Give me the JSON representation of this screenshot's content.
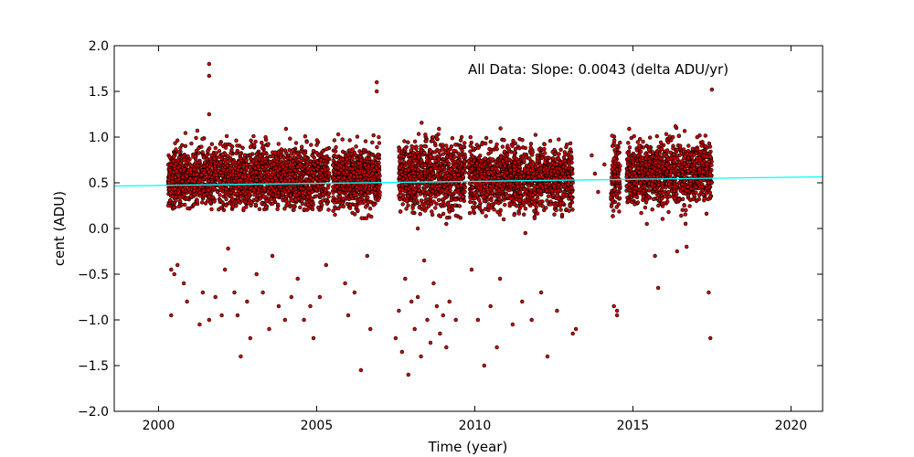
{
  "chart_data": {
    "type": "scatter",
    "xlabel": "Time (year)",
    "ylabel": "cent (ADU)",
    "xlim": [
      1998.6,
      2021.0
    ],
    "ylim": [
      -2.0,
      2.0
    ],
    "xticks": [
      2000,
      2005,
      2010,
      2015,
      2020
    ],
    "xtick_labels": [
      "2000",
      "2005",
      "2010",
      "2015",
      "2020"
    ],
    "yticks": [
      -2.0,
      -1.5,
      -1.0,
      -0.5,
      0.0,
      0.5,
      1.0,
      1.5,
      2.0
    ],
    "ytick_labels": [
      "−2.0",
      "−1.5",
      "−1.0",
      "−0.5",
      "0.0",
      "0.5",
      "1.0",
      "1.5",
      "2.0"
    ],
    "grid": false,
    "annotation": "All Data: Slope:  0.0043 (delta ADU/yr)",
    "fit_line": {
      "color": "#00ffff",
      "slope": 0.0043,
      "x": [
        1998.6,
        2021.0
      ],
      "y": [
        0.465,
        0.565
      ]
    },
    "marker_color": "#cc0000",
    "marker_edge": "#000000",
    "dense_clusters": [
      {
        "x_range": [
          2000.3,
          2005.4
        ],
        "y_center": 0.55,
        "y_spread": 0.3,
        "y_min": 0.2,
        "y_max": 1.1
      },
      {
        "x_range": [
          2005.5,
          2007.0
        ],
        "y_center": 0.55,
        "y_spread": 0.3,
        "y_min": 0.1,
        "y_max": 1.05
      },
      {
        "x_range": [
          2007.6,
          2009.7
        ],
        "y_center": 0.58,
        "y_spread": 0.33,
        "y_min": 0.1,
        "y_max": 1.2
      },
      {
        "x_range": [
          2009.8,
          2013.1
        ],
        "y_center": 0.55,
        "y_spread": 0.3,
        "y_min": 0.1,
        "y_max": 1.15
      },
      {
        "x_range": [
          2014.3,
          2014.6
        ],
        "y_center": 0.55,
        "y_spread": 0.35,
        "y_min": 0.05,
        "y_max": 1.05
      },
      {
        "x_range": [
          2014.8,
          2017.5
        ],
        "y_center": 0.6,
        "y_spread": 0.3,
        "y_min": 0.05,
        "y_max": 1.2
      }
    ],
    "outliers": [
      [
        2000.4,
        -0.95
      ],
      [
        2000.4,
        -0.45
      ],
      [
        2000.5,
        -0.5
      ],
      [
        2000.6,
        -0.4
      ],
      [
        2000.8,
        -0.6
      ],
      [
        2000.9,
        -0.8
      ],
      [
        2001.3,
        -1.05
      ],
      [
        2001.4,
        -0.7
      ],
      [
        2001.6,
        -1.0
      ],
      [
        2001.8,
        -0.75
      ],
      [
        2002.0,
        -0.95
      ],
      [
        2002.1,
        -0.45
      ],
      [
        2002.2,
        -0.22
      ],
      [
        2002.4,
        -0.7
      ],
      [
        2002.5,
        -0.95
      ],
      [
        2002.6,
        -1.4
      ],
      [
        2002.8,
        -0.8
      ],
      [
        2002.9,
        -1.2
      ],
      [
        2003.1,
        -0.5
      ],
      [
        2003.3,
        -0.7
      ],
      [
        2003.5,
        -1.1
      ],
      [
        2003.6,
        -0.3
      ],
      [
        2003.8,
        -0.85
      ],
      [
        2004.0,
        -1.0
      ],
      [
        2004.2,
        -0.75
      ],
      [
        2004.4,
        -0.55
      ],
      [
        2004.6,
        -1.0
      ],
      [
        2004.8,
        -0.85
      ],
      [
        2004.9,
        -1.2
      ],
      [
        2005.1,
        -0.75
      ],
      [
        2005.3,
        -0.4
      ],
      [
        2005.9,
        -0.6
      ],
      [
        2006.0,
        -0.95
      ],
      [
        2006.2,
        -0.7
      ],
      [
        2006.4,
        -1.55
      ],
      [
        2006.6,
        -0.3
      ],
      [
        2006.7,
        -1.1
      ],
      [
        2007.5,
        -1.2
      ],
      [
        2007.6,
        -0.9
      ],
      [
        2007.7,
        -1.35
      ],
      [
        2007.8,
        -0.55
      ],
      [
        2007.9,
        -1.6
      ],
      [
        2008.0,
        -0.8
      ],
      [
        2008.1,
        -1.1
      ],
      [
        2008.2,
        -0.75
      ],
      [
        2008.3,
        -1.4
      ],
      [
        2008.4,
        -0.35
      ],
      [
        2008.5,
        -1.0
      ],
      [
        2008.6,
        -1.25
      ],
      [
        2008.7,
        -0.6
      ],
      [
        2008.8,
        -0.85
      ],
      [
        2008.9,
        -1.15
      ],
      [
        2009.0,
        -0.95
      ],
      [
        2009.1,
        -1.3
      ],
      [
        2009.2,
        -0.8
      ],
      [
        2009.4,
        -1.0
      ],
      [
        2009.9,
        -0.45
      ],
      [
        2010.1,
        -1.0
      ],
      [
        2010.3,
        -1.5
      ],
      [
        2010.5,
        -0.85
      ],
      [
        2010.7,
        -1.3
      ],
      [
        2010.8,
        -0.55
      ],
      [
        2011.2,
        -1.05
      ],
      [
        2011.5,
        -0.8
      ],
      [
        2011.8,
        -1.0
      ],
      [
        2012.1,
        -0.7
      ],
      [
        2012.3,
        -1.4
      ],
      [
        2012.6,
        -0.9
      ],
      [
        2013.1,
        -1.15
      ],
      [
        2013.2,
        -1.1
      ],
      [
        2014.4,
        -0.85
      ],
      [
        2014.5,
        -0.9
      ],
      [
        2014.5,
        -0.95
      ],
      [
        2015.7,
        -0.3
      ],
      [
        2015.8,
        -0.65
      ],
      [
        2016.4,
        -0.25
      ],
      [
        2016.7,
        -0.2
      ],
      [
        2017.4,
        -0.7
      ],
      [
        2017.45,
        -1.2
      ],
      [
        2001.6,
        1.8
      ],
      [
        2001.6,
        1.67
      ],
      [
        2006.9,
        1.6
      ],
      [
        2006.9,
        1.5
      ],
      [
        2017.5,
        1.52
      ],
      [
        2001.6,
        1.25
      ],
      [
        2008.2,
        0.0
      ],
      [
        2009.1,
        0.05
      ],
      [
        2011.6,
        -0.05
      ],
      [
        2013.7,
        0.8
      ],
      [
        2013.8,
        0.6
      ],
      [
        2013.9,
        0.4
      ],
      [
        2014.1,
        0.7
      ]
    ]
  }
}
